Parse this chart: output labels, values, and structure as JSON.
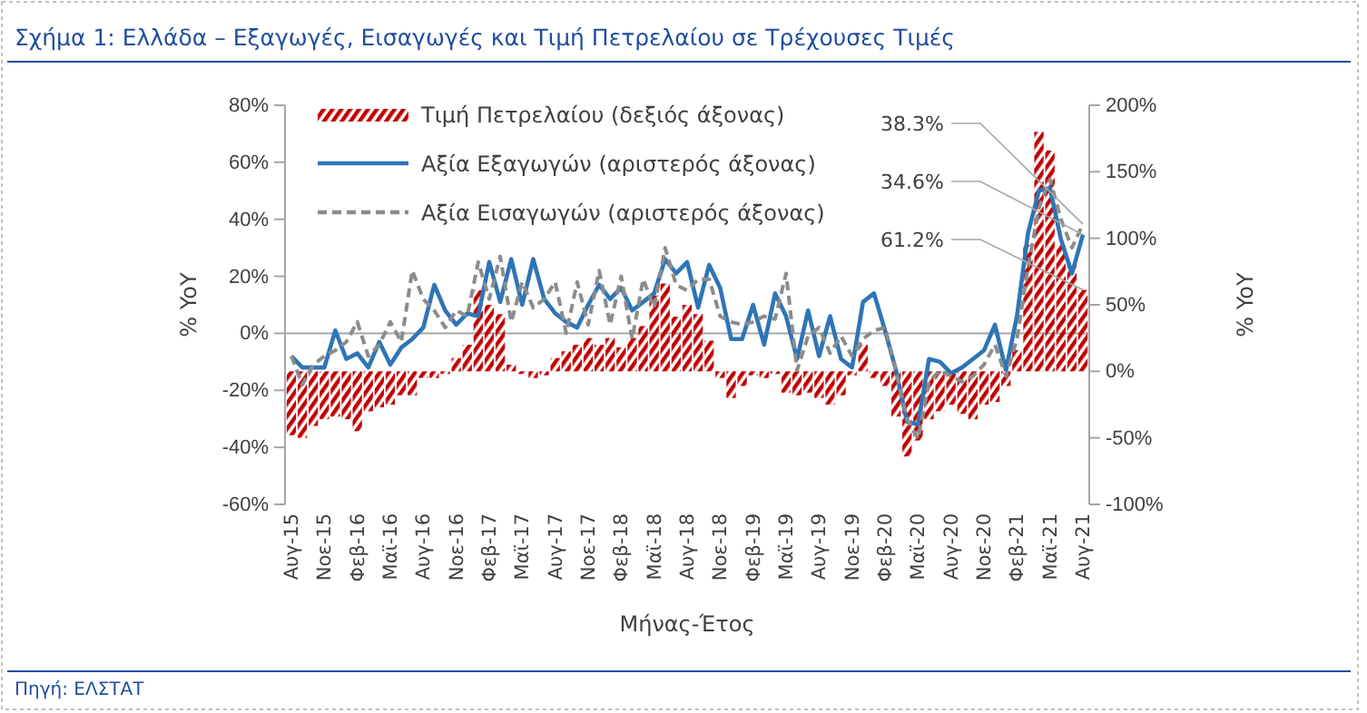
{
  "chart_data": {
    "type": "bar",
    "title": "Σχήμα 1: Ελλάδα – Εξαγωγές, Εισαγωγές και Τιμή Πετρελαίου σε Τρέχουσες Τιμές",
    "xlabel": "Μήνας-Έτος",
    "ylabel": "% YoY",
    "y2label": "% YoY",
    "annotations": [
      "Πηγή: ΕΛΣΤΑΤ"
    ],
    "legend": "top left",
    "categories": [
      "Αυγ-15",
      null,
      null,
      "Νοε-15",
      null,
      null,
      "Φεβ-16",
      null,
      null,
      "Μαϊ-16",
      null,
      null,
      "Αυγ-16",
      null,
      null,
      "Νοε-16",
      null,
      null,
      "Φεβ-17",
      null,
      null,
      "Μαϊ-17",
      null,
      null,
      "Αυγ-17",
      null,
      null,
      "Νοε-17",
      null,
      null,
      "Φεβ-18",
      null,
      null,
      "Μαϊ-18",
      null,
      null,
      "Αυγ-18",
      null,
      null,
      "Νοε-18",
      null,
      null,
      "Φεβ-19",
      null,
      null,
      "Μαϊ-19",
      null,
      null,
      "Αυγ-19",
      null,
      null,
      "Νοε-19",
      null,
      null,
      "Φεβ-20",
      null,
      null,
      "Μαϊ-20",
      null,
      null,
      "Αυγ-20",
      null,
      null,
      "Νοε-20",
      null,
      null,
      "Φεβ-21",
      null,
      null,
      "Μαϊ-21",
      null,
      null,
      "Αυγ-21"
    ],
    "series": [
      {
        "name": "Τιμή Πετρελαίου (δεξιός άξονας)",
        "axis": "y2",
        "color": "#c00000",
        "values": [
          -48,
          -50,
          -41,
          -36,
          -34,
          -36,
          -45,
          -30,
          -27,
          -25,
          -18,
          -18,
          -5,
          -5,
          -2,
          10,
          20,
          61,
          50,
          43,
          5,
          -2,
          -5,
          -3,
          10,
          15,
          20,
          25,
          20,
          25,
          18,
          25,
          34,
          57,
          66,
          41,
          50,
          43,
          23,
          -5,
          -20,
          -11,
          -3,
          -5,
          -2,
          -16,
          -18,
          -16,
          -20,
          -25,
          -18,
          -3,
          20,
          -5,
          -11,
          -34,
          -64,
          -52,
          -36,
          -30,
          -25,
          -32,
          -36,
          -25,
          -23,
          -11,
          16,
          95,
          180,
          166,
          95,
          80,
          61.2
        ],
        "value_labels": [
          null,
          null,
          null,
          null,
          null,
          null,
          null,
          null,
          null,
          null,
          null,
          null,
          null,
          null,
          null,
          null,
          null,
          null,
          null,
          null,
          null,
          null,
          null,
          null,
          null,
          null,
          null,
          null,
          null,
          null,
          null,
          null,
          null,
          null,
          null,
          null,
          null,
          null,
          null,
          null,
          null,
          null,
          null,
          null,
          null,
          null,
          null,
          null,
          null,
          null,
          null,
          null,
          null,
          null,
          null,
          null,
          null,
          null,
          null,
          null,
          null,
          null,
          null,
          null,
          null,
          null,
          null,
          null,
          null,
          null,
          null,
          null,
          "61.2%"
        ]
      },
      {
        "name": "Αξία Εξαγωγών  (αριστερός άξονας)",
        "type": "line",
        "line_style": "solid",
        "color": "#2e75b6",
        "values": [
          -8,
          -12,
          -12,
          -12,
          1,
          -9,
          -7,
          -12,
          -3,
          -11,
          -5,
          -2,
          2,
          17,
          8,
          3,
          7,
          6,
          25,
          11,
          26,
          10,
          26,
          12,
          7,
          4,
          2,
          10,
          17,
          12,
          16,
          8,
          11,
          14,
          26,
          21,
          25,
          9,
          24,
          16,
          -2,
          -2,
          10,
          -4,
          14,
          6,
          -9,
          8,
          -8,
          6,
          -9,
          -12,
          11,
          14,
          1,
          -13,
          -31,
          -32,
          -9,
          -10,
          -14,
          -12,
          -9,
          -6,
          3,
          -13,
          6,
          35,
          50,
          51,
          33,
          21,
          34.6
        ],
        "value_labels": [
          null,
          null,
          null,
          null,
          null,
          null,
          null,
          null,
          null,
          null,
          null,
          null,
          null,
          null,
          null,
          null,
          null,
          null,
          null,
          null,
          null,
          null,
          null,
          null,
          null,
          null,
          null,
          null,
          null,
          null,
          null,
          null,
          null,
          null,
          null,
          null,
          null,
          null,
          null,
          null,
          null,
          null,
          null,
          null,
          null,
          null,
          null,
          null,
          null,
          null,
          null,
          null,
          null,
          null,
          null,
          null,
          null,
          null,
          null,
          null,
          null,
          null,
          null,
          null,
          null,
          null,
          null,
          null,
          null,
          null,
          null,
          null,
          "34.6%"
        ]
      },
      {
        "name": "Αξία Εισαγωγών (αριστερός άξονας)",
        "type": "line",
        "line_style": "dashed",
        "color": "#8c8c8c",
        "values": [
          -8,
          -18,
          -11,
          -8,
          -6,
          -3,
          4,
          -8,
          -4,
          4,
          -3,
          22,
          12,
          8,
          2,
          8,
          6,
          25,
          12,
          27,
          4,
          18,
          9,
          12,
          18,
          0,
          18,
          3,
          22,
          3,
          20,
          -2,
          19,
          9,
          30,
          17,
          15,
          19,
          19,
          6,
          4,
          3,
          4,
          6,
          5,
          21,
          -13,
          -1,
          2,
          -7,
          -1,
          -8,
          -2,
          1,
          2,
          -13,
          -30,
          -37,
          -17,
          -13,
          -15,
          -17,
          -15,
          -11,
          -4,
          -15,
          -2,
          23,
          44,
          54,
          40,
          30,
          38.3
        ],
        "value_labels": [
          null,
          null,
          null,
          null,
          null,
          null,
          null,
          null,
          null,
          null,
          null,
          null,
          null,
          null,
          null,
          null,
          null,
          null,
          null,
          null,
          null,
          null,
          null,
          null,
          null,
          null,
          null,
          null,
          null,
          null,
          null,
          null,
          null,
          null,
          null,
          null,
          null,
          null,
          null,
          null,
          null,
          null,
          null,
          null,
          null,
          null,
          null,
          null,
          null,
          null,
          null,
          null,
          null,
          null,
          null,
          null,
          null,
          null,
          null,
          null,
          null,
          null,
          null,
          null,
          null,
          null,
          null,
          null,
          null,
          null,
          null,
          null,
          "38.3%"
        ]
      }
    ],
    "ylim": [
      -60,
      80
    ],
    "yticks": [
      {
        "value": -60,
        "label": "-60%"
      },
      {
        "value": -40,
        "label": "-40%"
      },
      {
        "value": -20,
        "label": "-20%"
      },
      {
        "value": 0,
        "label": "0%"
      },
      {
        "value": 20,
        "label": "20%"
      },
      {
        "value": 40,
        "label": "40%"
      },
      {
        "value": 60,
        "label": "60%"
      },
      {
        "value": 80,
        "label": "80%"
      }
    ],
    "y2lim": [
      -100,
      200
    ],
    "y2ticks": [
      {
        "value": -100,
        "label": "-100%"
      },
      {
        "value": -50,
        "label": "-50%"
      },
      {
        "value": 0,
        "label": "0%"
      },
      {
        "value": 50,
        "label": "50%"
      },
      {
        "value": 100,
        "label": "100%"
      },
      {
        "value": 150,
        "label": "150%"
      },
      {
        "value": 200,
        "label": "200%"
      }
    ]
  }
}
